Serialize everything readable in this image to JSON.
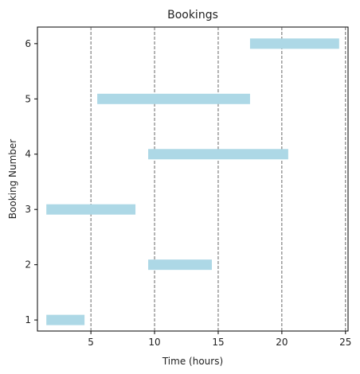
{
  "chart_data": {
    "type": "bar",
    "orientation": "horizontal-gantt",
    "title": "Bookings",
    "xlabel": "Time (hours)",
    "ylabel": "Booking Number",
    "xlim": [
      0.8,
      25.2
    ],
    "ylim": [
      0.8,
      6.3
    ],
    "xticks": [
      5,
      10,
      15,
      20,
      25
    ],
    "yticks": [
      1,
      2,
      3,
      4,
      5,
      6
    ],
    "grid": "vertical dashed lines at x ticks",
    "bar_color": "#add8e6",
    "bookings": [
      {
        "booking": 1,
        "start": 1.5,
        "end": 4.5
      },
      {
        "booking": 2,
        "start": 9.5,
        "end": 14.5
      },
      {
        "booking": 3,
        "start": 1.5,
        "end": 8.5
      },
      {
        "booking": 4,
        "start": 9.5,
        "end": 20.5
      },
      {
        "booking": 5,
        "start": 5.5,
        "end": 17.5
      },
      {
        "booking": 6,
        "start": 17.5,
        "end": 24.5
      }
    ]
  }
}
